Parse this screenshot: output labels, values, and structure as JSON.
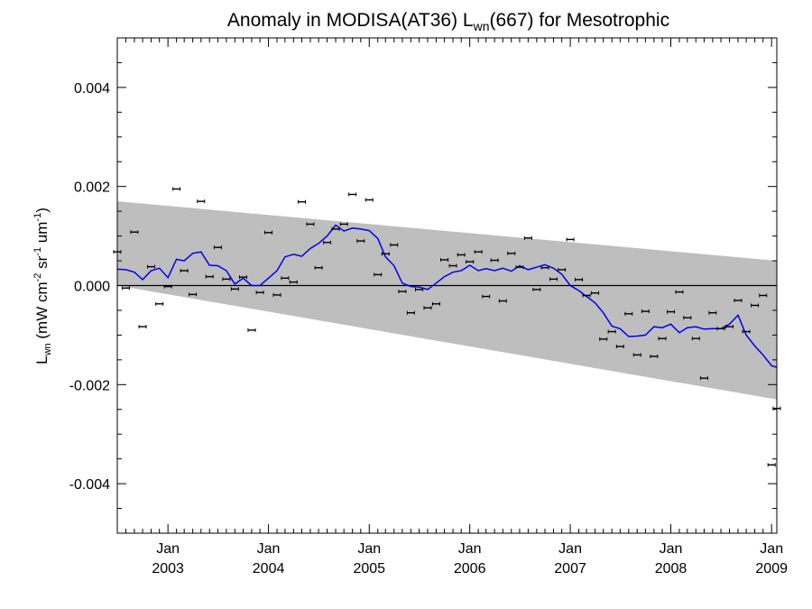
{
  "chart_data": {
    "type": "line",
    "title_main": "Anomaly in MODISA(AT36) L",
    "title_sub": "wn",
    "title_rest": "(667) for Mesotrophic",
    "ylabel": {
      "L": "L",
      "wn": "wn",
      "p1": " (mW cm",
      "e1": "-2",
      "p2": " sr",
      "e2": "-1",
      "p3": " um",
      "e3": "-1",
      "p4": ")"
    },
    "ylim": [
      -0.005,
      0.005
    ],
    "xlim": [
      "2002-07-01",
      "2009-01-20"
    ],
    "y_ticks": [
      {
        "value": 0.004,
        "label": "0.004"
      },
      {
        "value": 0.002,
        "label": "0.002"
      },
      {
        "value": 0.0,
        "label": "0.000"
      },
      {
        "value": -0.002,
        "label": "-0.002"
      },
      {
        "value": -0.004,
        "label": "-0.004"
      }
    ],
    "x_ticks": [
      {
        "date": "2003-01-01",
        "month": "Jan",
        "year": "2003"
      },
      {
        "date": "2004-01-01",
        "month": "Jan",
        "year": "2004"
      },
      {
        "date": "2005-01-01",
        "month": "Jan",
        "year": "2005"
      },
      {
        "date": "2006-01-01",
        "month": "Jan",
        "year": "2006"
      },
      {
        "date": "2007-01-01",
        "month": "Jan",
        "year": "2007"
      },
      {
        "date": "2008-01-01",
        "month": "Jan",
        "year": "2008"
      },
      {
        "date": "2009-01-01",
        "month": "Jan",
        "year": "2009"
      }
    ],
    "zero_line": 0.0,
    "trend_band": {
      "start": {
        "date": "2002-07-01",
        "upper": 0.0017,
        "lower": 0.0
      },
      "end": {
        "date": "2009-01-20",
        "upper": 0.0005,
        "lower": -0.0023
      }
    },
    "colors": {
      "band": "#bebebe",
      "line": "#0000ee",
      "points": "#000000",
      "zero": "#000000"
    },
    "grid": false,
    "points": [
      {
        "date": "2002-07-01",
        "y": 0.00068
      },
      {
        "date": "2002-08-01",
        "y": -5e-05
      },
      {
        "date": "2002-09-01",
        "y": 0.00108
      },
      {
        "date": "2002-10-01",
        "y": -0.00083
      },
      {
        "date": "2002-11-01",
        "y": 0.00038
      },
      {
        "date": "2002-12-01",
        "y": -0.00037
      },
      {
        "date": "2003-01-01",
        "y": -2e-05
      },
      {
        "date": "2003-02-01",
        "y": 0.00195
      },
      {
        "date": "2003-03-01",
        "y": 0.0003
      },
      {
        "date": "2003-04-01",
        "y": -0.00018
      },
      {
        "date": "2003-05-01",
        "y": 0.0017
      },
      {
        "date": "2003-06-01",
        "y": 0.00018
      },
      {
        "date": "2003-07-01",
        "y": 0.00077
      },
      {
        "date": "2003-08-01",
        "y": 0.00013
      },
      {
        "date": "2003-09-01",
        "y": -7e-05
      },
      {
        "date": "2003-10-01",
        "y": 0.00017
      },
      {
        "date": "2003-11-01",
        "y": -0.0009
      },
      {
        "date": "2003-12-01",
        "y": -0.00014
      },
      {
        "date": "2004-01-01",
        "y": 0.00107
      },
      {
        "date": "2004-02-01",
        "y": -0.00019
      },
      {
        "date": "2004-03-01",
        "y": 0.00015
      },
      {
        "date": "2004-04-01",
        "y": 7e-05
      },
      {
        "date": "2004-05-01",
        "y": 0.00169
      },
      {
        "date": "2004-06-01",
        "y": 0.00124
      },
      {
        "date": "2004-07-01",
        "y": 0.00036
      },
      {
        "date": "2004-08-01",
        "y": 0.00087
      },
      {
        "date": "2004-09-01",
        "y": 0.00114
      },
      {
        "date": "2004-10-01",
        "y": 0.00124
      },
      {
        "date": "2004-11-01",
        "y": 0.00184
      },
      {
        "date": "2004-12-01",
        "y": 0.0009
      },
      {
        "date": "2005-01-01",
        "y": 0.00173
      },
      {
        "date": "2005-02-01",
        "y": 0.00022
      },
      {
        "date": "2005-03-01",
        "y": 0.00064
      },
      {
        "date": "2005-04-01",
        "y": 0.00082
      },
      {
        "date": "2005-05-01",
        "y": -0.00012
      },
      {
        "date": "2005-06-01",
        "y": -0.00055
      },
      {
        "date": "2005-07-01",
        "y": -8e-05
      },
      {
        "date": "2005-08-01",
        "y": -0.00045
      },
      {
        "date": "2005-09-01",
        "y": -0.00037
      },
      {
        "date": "2005-10-01",
        "y": 0.00052
      },
      {
        "date": "2005-11-01",
        "y": 0.0004
      },
      {
        "date": "2005-12-01",
        "y": 0.00062
      },
      {
        "date": "2006-01-01",
        "y": 0.00048
      },
      {
        "date": "2006-02-01",
        "y": 0.00068
      },
      {
        "date": "2006-03-01",
        "y": -0.00022
      },
      {
        "date": "2006-04-01",
        "y": 0.00051
      },
      {
        "date": "2006-05-01",
        "y": -0.00031
      },
      {
        "date": "2006-06-01",
        "y": 0.00065
      },
      {
        "date": "2006-07-01",
        "y": 0.00037
      },
      {
        "date": "2006-08-01",
        "y": 0.00096
      },
      {
        "date": "2006-09-01",
        "y": -8e-05
      },
      {
        "date": "2006-10-01",
        "y": 0.00036
      },
      {
        "date": "2006-11-01",
        "y": 0.00013
      },
      {
        "date": "2006-12-01",
        "y": 0.00032
      },
      {
        "date": "2007-01-01",
        "y": 0.00093
      },
      {
        "date": "2007-02-01",
        "y": 0.00012
      },
      {
        "date": "2007-03-01",
        "y": -0.0002
      },
      {
        "date": "2007-04-01",
        "y": -0.00015
      },
      {
        "date": "2007-05-01",
        "y": -0.00108
      },
      {
        "date": "2007-06-01",
        "y": -0.00093
      },
      {
        "date": "2007-07-01",
        "y": -0.00123
      },
      {
        "date": "2007-08-01",
        "y": -0.00057
      },
      {
        "date": "2007-09-01",
        "y": -0.0014
      },
      {
        "date": "2007-10-01",
        "y": -0.00052
      },
      {
        "date": "2007-11-01",
        "y": -0.00143
      },
      {
        "date": "2007-12-01",
        "y": -0.00107
      },
      {
        "date": "2008-01-01",
        "y": -0.00053
      },
      {
        "date": "2008-02-01",
        "y": -0.00013
      },
      {
        "date": "2008-03-01",
        "y": -0.00065
      },
      {
        "date": "2008-04-01",
        "y": -0.00107
      },
      {
        "date": "2008-05-01",
        "y": -0.00187
      },
      {
        "date": "2008-06-01",
        "y": -0.00055
      },
      {
        "date": "2008-07-01",
        "y": -0.00087
      },
      {
        "date": "2008-08-01",
        "y": -0.00083
      },
      {
        "date": "2008-09-01",
        "y": -0.0003
      },
      {
        "date": "2008-10-01",
        "y": -0.00093
      },
      {
        "date": "2008-11-01",
        "y": -0.0004
      },
      {
        "date": "2008-12-01",
        "y": -0.0002
      },
      {
        "date": "2009-01-01",
        "y": -0.00362
      },
      {
        "date": "2009-01-20",
        "y": -0.00248
      }
    ],
    "smoothed": [
      {
        "date": "2002-07-01",
        "y": 0.00033
      },
      {
        "date": "2002-08-01",
        "y": 0.00032
      },
      {
        "date": "2002-09-01",
        "y": 0.00027
      },
      {
        "date": "2002-10-01",
        "y": 0.00012
      },
      {
        "date": "2002-11-01",
        "y": 0.0003
      },
      {
        "date": "2002-12-01",
        "y": 0.00035
      },
      {
        "date": "2003-01-01",
        "y": 0.00016
      },
      {
        "date": "2003-02-01",
        "y": 0.00053
      },
      {
        "date": "2003-03-01",
        "y": 0.0005
      },
      {
        "date": "2003-04-01",
        "y": 0.00065
      },
      {
        "date": "2003-05-01",
        "y": 0.00068
      },
      {
        "date": "2003-06-01",
        "y": 0.00041
      },
      {
        "date": "2003-07-01",
        "y": 0.0004
      },
      {
        "date": "2003-08-01",
        "y": 0.0003
      },
      {
        "date": "2003-09-01",
        "y": 3e-05
      },
      {
        "date": "2003-10-01",
        "y": 0.00015
      },
      {
        "date": "2003-11-01",
        "y": 0.0
      },
      {
        "date": "2003-12-01",
        "y": 0.0
      },
      {
        "date": "2004-01-01",
        "y": 0.00015
      },
      {
        "date": "2004-02-01",
        "y": 0.0003
      },
      {
        "date": "2004-03-01",
        "y": 0.00058
      },
      {
        "date": "2004-04-01",
        "y": 0.00063
      },
      {
        "date": "2004-05-01",
        "y": 0.00059
      },
      {
        "date": "2004-06-01",
        "y": 0.00075
      },
      {
        "date": "2004-07-01",
        "y": 0.00085
      },
      {
        "date": "2004-08-01",
        "y": 0.001
      },
      {
        "date": "2004-09-01",
        "y": 0.00122
      },
      {
        "date": "2004-10-01",
        "y": 0.0011
      },
      {
        "date": "2004-11-01",
        "y": 0.00116
      },
      {
        "date": "2004-12-01",
        "y": 0.00114
      },
      {
        "date": "2005-01-01",
        "y": 0.00111
      },
      {
        "date": "2005-02-01",
        "y": 0.00095
      },
      {
        "date": "2005-03-01",
        "y": 0.00058
      },
      {
        "date": "2005-04-01",
        "y": 0.0004
      },
      {
        "date": "2005-05-01",
        "y": 5e-05
      },
      {
        "date": "2005-06-01",
        "y": -2e-05
      },
      {
        "date": "2005-07-01",
        "y": -3e-05
      },
      {
        "date": "2005-08-01",
        "y": -8e-05
      },
      {
        "date": "2005-09-01",
        "y": 5e-05
      },
      {
        "date": "2005-10-01",
        "y": 0.00018
      },
      {
        "date": "2005-11-01",
        "y": 0.00027
      },
      {
        "date": "2005-12-01",
        "y": 0.0003
      },
      {
        "date": "2006-01-01",
        "y": 0.00041
      },
      {
        "date": "2006-02-01",
        "y": 0.0003
      },
      {
        "date": "2006-03-01",
        "y": 0.00034
      },
      {
        "date": "2006-04-01",
        "y": 0.0003
      },
      {
        "date": "2006-05-01",
        "y": 0.00035
      },
      {
        "date": "2006-06-01",
        "y": 0.00029
      },
      {
        "date": "2006-07-01",
        "y": 0.0004
      },
      {
        "date": "2006-08-01",
        "y": 0.00032
      },
      {
        "date": "2006-09-01",
        "y": 0.00037
      },
      {
        "date": "2006-10-01",
        "y": 0.00042
      },
      {
        "date": "2006-11-01",
        "y": 0.00035
      },
      {
        "date": "2006-12-01",
        "y": 0.00023
      },
      {
        "date": "2007-01-01",
        "y": 0.0
      },
      {
        "date": "2007-02-01",
        "y": -0.0001
      },
      {
        "date": "2007-03-01",
        "y": -0.00022
      },
      {
        "date": "2007-04-01",
        "y": -0.00035
      },
      {
        "date": "2007-05-01",
        "y": -0.00055
      },
      {
        "date": "2007-06-01",
        "y": -0.00082
      },
      {
        "date": "2007-07-01",
        "y": -0.00087
      },
      {
        "date": "2007-08-01",
        "y": -0.00103
      },
      {
        "date": "2007-09-01",
        "y": -0.00102
      },
      {
        "date": "2007-10-01",
        "y": -0.001
      },
      {
        "date": "2007-11-01",
        "y": -0.00083
      },
      {
        "date": "2007-12-01",
        "y": -0.00085
      },
      {
        "date": "2008-01-01",
        "y": -0.00078
      },
      {
        "date": "2008-02-01",
        "y": -0.00095
      },
      {
        "date": "2008-03-01",
        "y": -0.00085
      },
      {
        "date": "2008-04-01",
        "y": -0.00083
      },
      {
        "date": "2008-05-01",
        "y": -0.00088
      },
      {
        "date": "2008-06-01",
        "y": -0.00087
      },
      {
        "date": "2008-07-01",
        "y": -0.00087
      },
      {
        "date": "2008-08-01",
        "y": -0.00078
      },
      {
        "date": "2008-09-01",
        "y": -0.0006
      },
      {
        "date": "2008-10-01",
        "y": -0.001
      },
      {
        "date": "2008-11-01",
        "y": -0.00122
      },
      {
        "date": "2008-12-01",
        "y": -0.0014
      },
      {
        "date": "2009-01-01",
        "y": -0.00162
      },
      {
        "date": "2009-01-20",
        "y": -0.00165
      }
    ]
  }
}
